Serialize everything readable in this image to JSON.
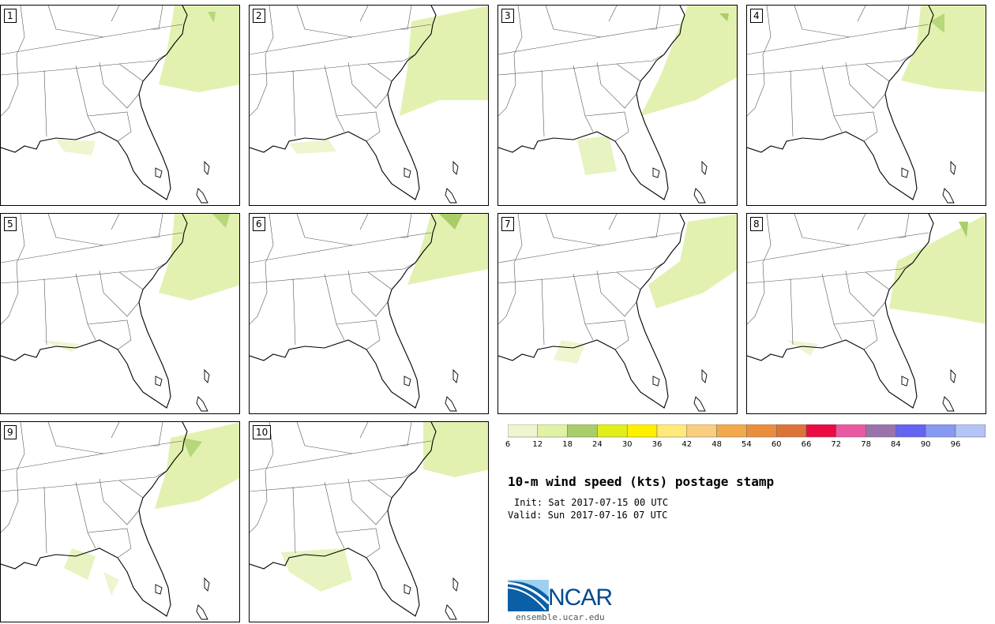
{
  "panels": [
    {
      "label": "1"
    },
    {
      "label": "2"
    },
    {
      "label": "3"
    },
    {
      "label": "4"
    },
    {
      "label": "5"
    },
    {
      "label": "6"
    },
    {
      "label": "7"
    },
    {
      "label": "8"
    },
    {
      "label": "9"
    },
    {
      "label": "10"
    }
  ],
  "colorbar": {
    "ticks": [
      "6",
      "12",
      "18",
      "24",
      "30",
      "36",
      "42",
      "48",
      "54",
      "60",
      "66",
      "72",
      "78",
      "84",
      "90",
      "96"
    ],
    "colors": [
      "#eef5cf",
      "#dff2a6",
      "#a9cd69",
      "#e2ee1a",
      "#fff000",
      "#ffe97a",
      "#f8cf7f",
      "#f1a94c",
      "#ea8e3e",
      "#dc7439",
      "#ea0b43",
      "#e959a2",
      "#9a73aa",
      "#6464f0",
      "#8799f0",
      "#b4c4f5"
    ]
  },
  "title": "10-m wind speed (kts) postage stamp",
  "init": "Init: Sat 2017-07-15 00 UTC",
  "valid": "Valid: Sun 2017-07-16 07 UTC",
  "logo": {
    "name": "NCAR",
    "url": "ensemble.ucar.edu"
  }
}
